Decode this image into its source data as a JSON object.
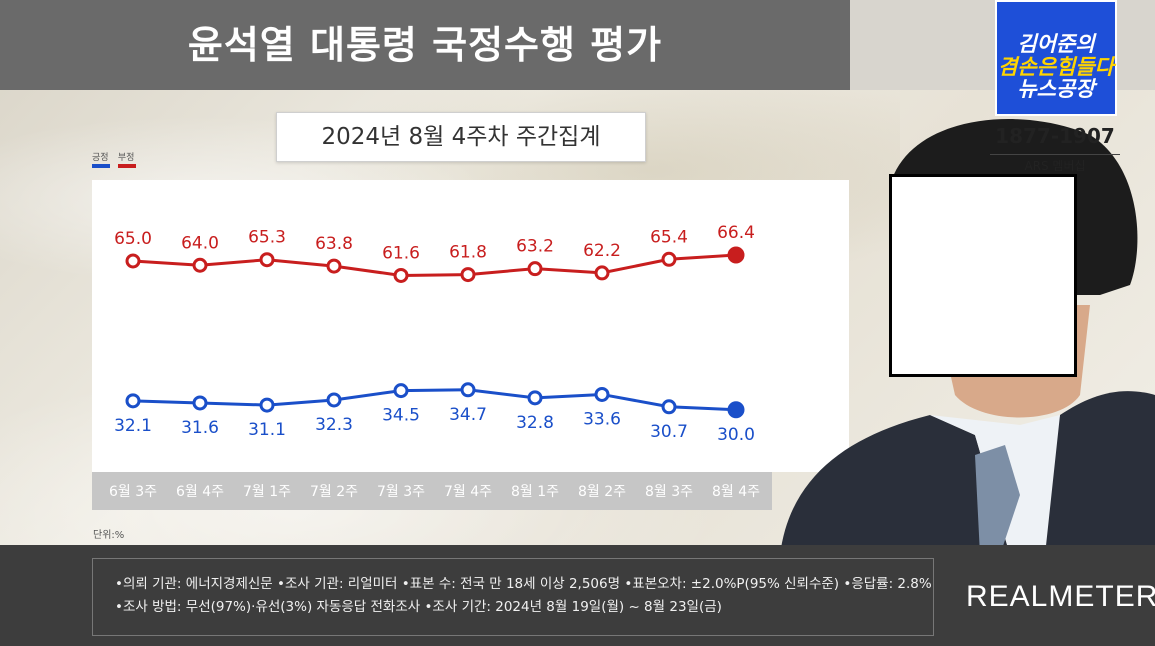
{
  "header": {
    "title": "윤석열 대통령 국정수행 평가",
    "period": "2024년 8월 4주차 주간집계"
  },
  "legend": {
    "positive": "긍정",
    "negative": "부정"
  },
  "unit_label": "단위:%",
  "colors": {
    "positive": "#1a4fc9",
    "negative": "#c81e1e",
    "axis_band": "#c6c6c6"
  },
  "chart_data": {
    "type": "line",
    "categories": [
      "6월 3주",
      "6월 4주",
      "7월 1주",
      "7월 2주",
      "7월 3주",
      "7월 4주",
      "8월 1주",
      "8월 2주",
      "8월 3주",
      "8월 4주"
    ],
    "series": [
      {
        "name": "부정",
        "values": [
          65.0,
          64.0,
          65.3,
          63.8,
          61.6,
          61.8,
          63.2,
          62.2,
          65.4,
          66.4
        ]
      },
      {
        "name": "긍정",
        "values": [
          32.1,
          31.6,
          31.1,
          32.3,
          34.5,
          34.7,
          32.8,
          33.6,
          30.7,
          30.0
        ]
      }
    ],
    "title": "윤석열 대통령 국정수행 평가",
    "subtitle": "2024년 8월 4주차 주간집계",
    "xlabel": "",
    "ylabel": "",
    "grid": false,
    "legend": "top-left"
  },
  "brand": {
    "line1": "김어준의",
    "line2": "겸손은힘들다",
    "line3": "뉴스공장",
    "phone": "1877-1907",
    "membership": "ARS 멤버십"
  },
  "footer": {
    "line1": "•의뢰 기관: 에너지경제신문 •조사 기관: 리얼미터 •표본 수: 전국 만 18세 이상 2,506명 •표본오차: ±2.0%P(95% 신뢰수준) •응답률: 2.8%",
    "line2": "•조사 방법: 무선(97%)·유선(3%) 자동응답 전화조사 •조사 기간: 2024년 8월 19일(월) ~ 8월 23일(금)",
    "logo": "REALMETER"
  }
}
